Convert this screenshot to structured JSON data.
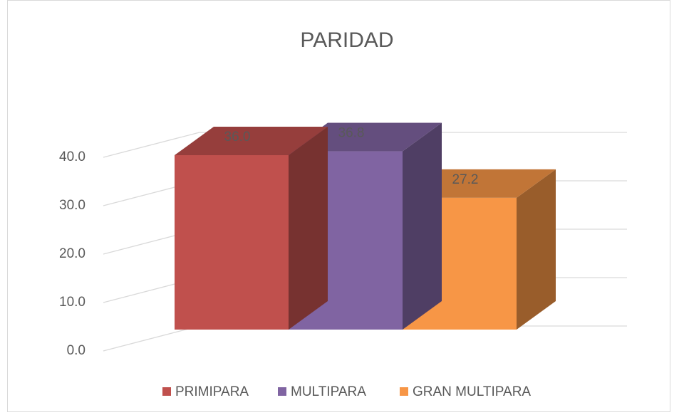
{
  "chart_data": {
    "type": "bar3d",
    "title": "PARIDAD",
    "series": [
      {
        "name": "PRIMIPARA",
        "color": "#c0504d",
        "values": [
          36.0
        ],
        "value_labels": [
          "36.0"
        ]
      },
      {
        "name": "MULTIPARA",
        "color": "#8064a2",
        "values": [
          36.8
        ],
        "value_labels": [
          "36.8"
        ]
      },
      {
        "name": "GRAN MULTIPARA",
        "color": "#f79646",
        "values": [
          27.2
        ],
        "value_labels": [
          "27.2"
        ]
      }
    ],
    "ylim": [
      0,
      40
    ],
    "yticks": [
      {
        "value": 0,
        "label": "0.0"
      },
      {
        "value": 10,
        "label": "10.0"
      },
      {
        "value": 20,
        "label": "20.0"
      },
      {
        "value": 30,
        "label": "30.0"
      },
      {
        "value": 40,
        "label": "40.0"
      }
    ],
    "grid": true
  }
}
